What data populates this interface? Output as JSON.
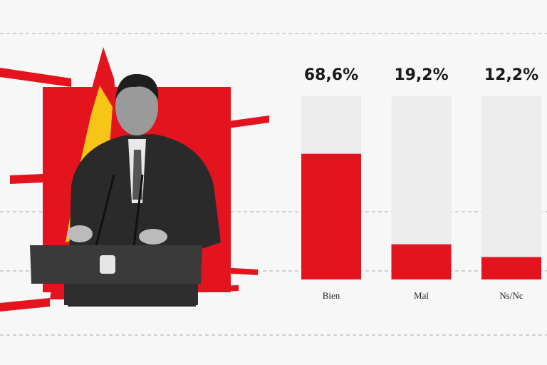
{
  "chart_data": {
    "type": "bar",
    "categories": [
      "Bien",
      "Mal",
      "Ns/Nc"
    ],
    "values": [
      68.6,
      19.2,
      12.2
    ],
    "value_labels": [
      "68,6%",
      "19,2%",
      "12,2%"
    ],
    "color": "#e3141e",
    "track_color": "#ececec",
    "ylim": [
      0,
      100
    ]
  }
}
